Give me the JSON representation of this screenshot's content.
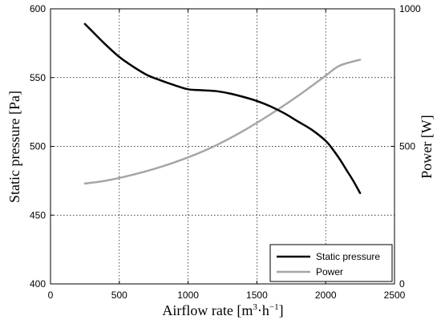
{
  "chart_data": {
    "type": "line",
    "x_label": {
      "main": "Airflow rate [m",
      "sup1": "3",
      "mid": "·h",
      "sup2": "−1",
      "end": "]"
    },
    "y_label_left": "Static pressure [Pa]",
    "y_label_right": "Power [W]",
    "xlim": [
      0,
      2500
    ],
    "ylim_left": [
      400,
      600
    ],
    "ylim_right": [
      0,
      1000
    ],
    "x_ticks": [
      "0",
      "500",
      "1000",
      "1500",
      "2000",
      "2500"
    ],
    "y_ticks_left": [
      "400",
      "450",
      "500",
      "550",
      "600"
    ],
    "y_ticks_right": [
      "0",
      "500",
      "1000"
    ],
    "grid": true,
    "legend_position": "bottom-right",
    "series": [
      {
        "name": "Static pressure",
        "axis": "left",
        "color": "#000000",
        "x": [
          250,
          300,
          400,
          500,
          600,
          700,
          800,
          900,
          1000,
          1100,
          1200,
          1300,
          1400,
          1500,
          1600,
          1700,
          1800,
          1900,
          2000,
          2050,
          2100,
          2150,
          2200,
          2250
        ],
        "y": [
          589,
          584,
          574,
          565,
          558,
          552,
          548,
          544.5,
          541.5,
          540.8,
          540.2,
          538.5,
          536,
          533,
          529,
          524,
          518,
          512,
          504,
          498,
          491,
          483,
          475,
          466
        ]
      },
      {
        "name": "Power",
        "axis": "right",
        "color": "#a6a6a6",
        "x": [
          250,
          400,
          600,
          800,
          1000,
          1200,
          1400,
          1600,
          1800,
          2000,
          2100,
          2250
        ],
        "y": [
          365,
          375,
          397,
          425,
          460,
          503,
          556,
          617,
          684,
          757,
          793,
          815
        ]
      }
    ]
  }
}
